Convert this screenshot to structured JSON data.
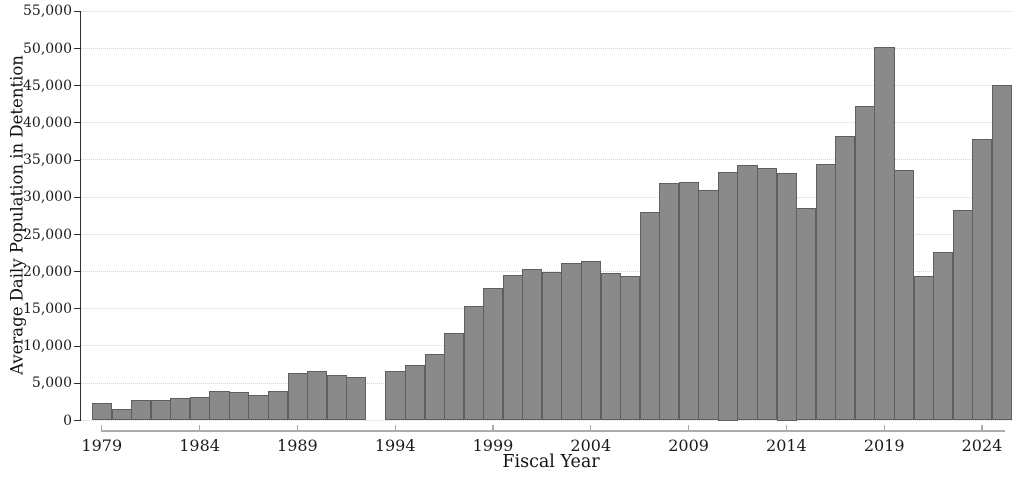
{
  "figure": {
    "background": "#ffffff"
  },
  "chart_data": {
    "type": "bar",
    "title": "",
    "xlabel": "Fiscal Year",
    "ylabel": "Average Daily Population in Detention",
    "categories": [
      1979,
      1980,
      1981,
      1982,
      1983,
      1984,
      1985,
      1986,
      1987,
      1988,
      1989,
      1990,
      1991,
      1992,
      1993,
      1994,
      1995,
      1996,
      1997,
      1998,
      1999,
      2000,
      2001,
      2002,
      2003,
      2004,
      2005,
      2006,
      2007,
      2008,
      2009,
      2010,
      2011,
      2012,
      2013,
      2014,
      2015,
      2016,
      2017,
      2018,
      2019,
      2020,
      2021,
      2022,
      2023,
      2024,
      2025
    ],
    "values": [
      2300,
      1600,
      2700,
      2800,
      3000,
      3200,
      3900,
      3800,
      3400,
      3900,
      6400,
      6700,
      6100,
      5900,
      null,
      6700,
      7400,
      8900,
      11800,
      15400,
      17800,
      19500,
      20400,
      19900,
      21200,
      21400,
      19800,
      19400,
      28000,
      31900,
      32100,
      31000,
      33400,
      34400,
      33900,
      33300,
      28500,
      34500,
      38200,
      42300,
      50200,
      33700,
      19400,
      22600,
      28300,
      37900,
      45100
    ],
    "ylim": [
      0,
      55000
    ],
    "ytick_step": 5000,
    "ytick_labels": [
      "0",
      "5,000",
      "10,000",
      "15,000",
      "20,000",
      "25,000",
      "30,000",
      "35,000",
      "40,000",
      "45,000",
      "50,000",
      "55,000"
    ],
    "xtick_years": [
      1979,
      1984,
      1989,
      1994,
      1999,
      2004,
      2009,
      2014,
      2019,
      2024
    ],
    "xtick_labels": [
      "1979",
      "1984",
      "1989",
      "1994",
      "1999",
      "2004",
      "2009",
      "2014",
      "2019",
      "2024"
    ],
    "grid": "horizontal dotted gridlines on",
    "legend": "none",
    "colors": {
      "bar_fill": "#8a8a8a",
      "bar_border": "#5f5f5f",
      "gridline": "#d4d4d4",
      "x_axis": "#ababab",
      "y_axis": "#2f2f2f",
      "text": "#111111"
    }
  }
}
